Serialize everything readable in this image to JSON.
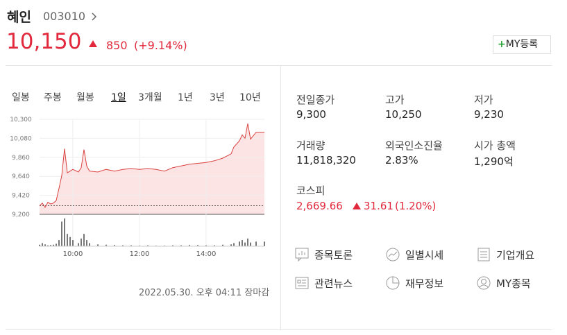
{
  "header": {
    "name": "혜인",
    "code": "003010",
    "price": "10,150",
    "change": "850",
    "change_pct": "(+9.14%)",
    "my_button": "MY등록"
  },
  "tabs": {
    "items": [
      "일봉",
      "주봉",
      "월봉",
      "1일",
      "3개월",
      "1년",
      "3년",
      "10년"
    ],
    "active": 3
  },
  "chart_data": {
    "type": "line",
    "color": "#d9413f",
    "fill": "#fde4e4",
    "x": [
      "09:00",
      "09:05",
      "09:10",
      "09:15",
      "09:20",
      "09:25",
      "09:30",
      "09:35",
      "09:40",
      "09:45",
      "09:50",
      "09:55",
      "10:00",
      "10:10",
      "10:15",
      "10:20",
      "10:25",
      "10:30",
      "10:45",
      "11:00",
      "11:15",
      "11:30",
      "11:45",
      "12:00",
      "12:15",
      "12:30",
      "12:45",
      "13:00",
      "13:15",
      "13:30",
      "13:45",
      "14:00",
      "14:15",
      "14:30",
      "14:45",
      "14:50",
      "15:00",
      "15:05",
      "15:10",
      "15:15",
      "15:20",
      "15:30",
      "15:45"
    ],
    "values": [
      9300,
      9330,
      9280,
      9340,
      9320,
      9330,
      9360,
      9500,
      9650,
      9960,
      9680,
      9700,
      9720,
      9690,
      9740,
      9950,
      9760,
      9700,
      9690,
      9720,
      9700,
      9720,
      9730,
      9720,
      9730,
      9720,
      9700,
      9740,
      9760,
      9780,
      9790,
      9800,
      9820,
      9850,
      9900,
      9980,
      10050,
      10120,
      10080,
      10250,
      10070,
      10150,
      10150
    ],
    "volume": [
      0.5,
      1,
      0.6,
      0.3,
      0.4,
      0.5,
      0.8,
      2,
      8,
      9,
      4,
      3,
      2,
      1,
      2.5,
      4,
      2,
      1,
      0.6,
      0.5,
      0.4,
      0.3,
      0.3,
      0.2,
      0.3,
      0.2,
      0.2,
      0.3,
      0.3,
      0.4,
      0.4,
      0.3,
      0.3,
      0.5,
      0.6,
      1,
      1.5,
      2,
      1.2,
      2.5,
      1.2,
      1.5,
      1.5
    ],
    "baseline": 9300,
    "ylim": [
      9200,
      10300
    ],
    "yticks": [
      {
        "value": 9200,
        "label": "9,200"
      },
      {
        "value": 9420,
        "label": "9,420"
      },
      {
        "value": 9640,
        "label": "9,640"
      },
      {
        "value": 9860,
        "label": "9,860"
      },
      {
        "value": 10080,
        "label": "10,080"
      },
      {
        "value": 10300,
        "label": "10,300"
      }
    ],
    "xlim": [
      "09:00",
      "15:45"
    ],
    "xticks": [
      "10:00",
      "12:00",
      "14:00"
    ],
    "grid": true
  },
  "timestamp": "2022.05.30. 오후 04:11 장마감",
  "stats": [
    {
      "label": "전일종가",
      "value": "9,300"
    },
    {
      "label": "고가",
      "value": "10,250"
    },
    {
      "label": "저가",
      "value": "9,230"
    },
    {
      "label": "거래량",
      "value": "11,818,320"
    },
    {
      "label": "외국인소진율",
      "value": "2.83%"
    },
    {
      "label": "시가 총액",
      "value": "1,290억"
    }
  ],
  "index": {
    "label": "코스피",
    "value": "2,669.66",
    "change": "31.61",
    "change_pct": "(1.20%)"
  },
  "links": [
    "종목토론",
    "일별시세",
    "기업개요",
    "관련뉴스",
    "재무정보",
    "MY종목"
  ]
}
